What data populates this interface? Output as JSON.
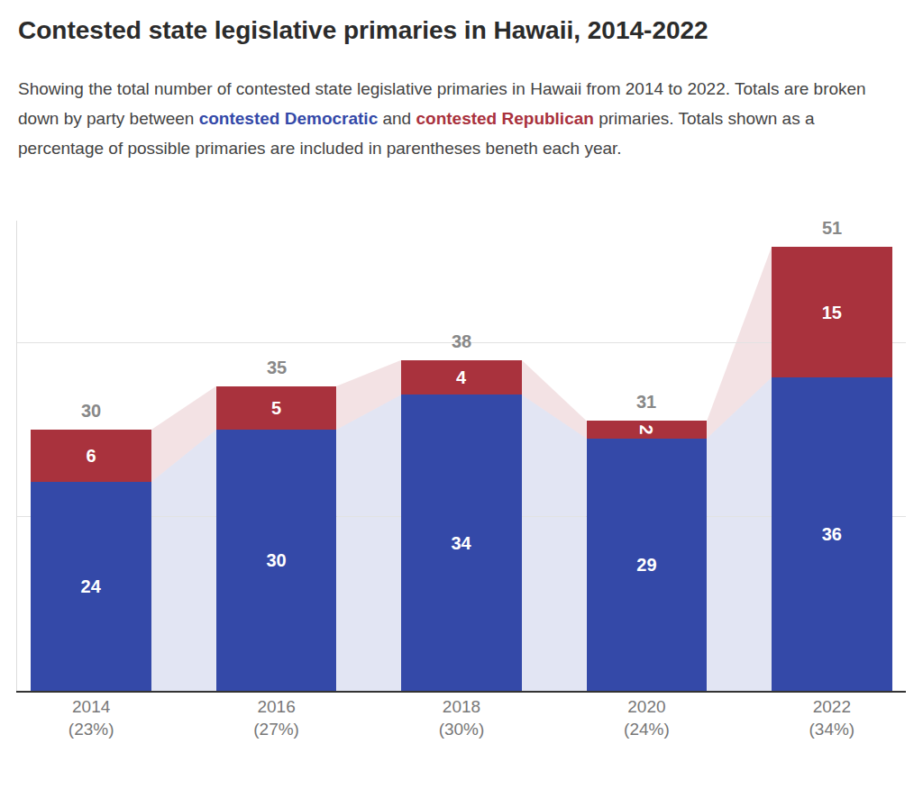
{
  "chart_data": {
    "type": "bar",
    "title": "Contested state legislative primaries in Hawaii, 2014-2022",
    "subtitle": "Showing the total number of contested state legislative primaries in Hawaii from 2014 to 2022. Totals are broken down by party between contested Democratic and contested Republican primaries. Totals shown as a percentage of possible primaries are included in parentheses beneth each year.",
    "categories": [
      "2014",
      "2016",
      "2018",
      "2020",
      "2022"
    ],
    "category_sublabels": [
      "(23%)",
      "(27%)",
      "(30%)",
      "(24%)",
      "(34%)"
    ],
    "series": [
      {
        "name": "contested Democratic",
        "color": "#3449a8",
        "values": [
          24,
          30,
          34,
          29,
          36
        ]
      },
      {
        "name": "contested Republican",
        "color": "#a9323d",
        "values": [
          6,
          5,
          4,
          2,
          15
        ]
      }
    ],
    "totals": [
      30,
      35,
      38,
      31,
      51
    ],
    "ylim": [
      0,
      54
    ],
    "yticks": [
      0,
      20,
      40
    ],
    "grid": true,
    "stacked": true,
    "data_labels": true,
    "tick_labels": "x"
  }
}
